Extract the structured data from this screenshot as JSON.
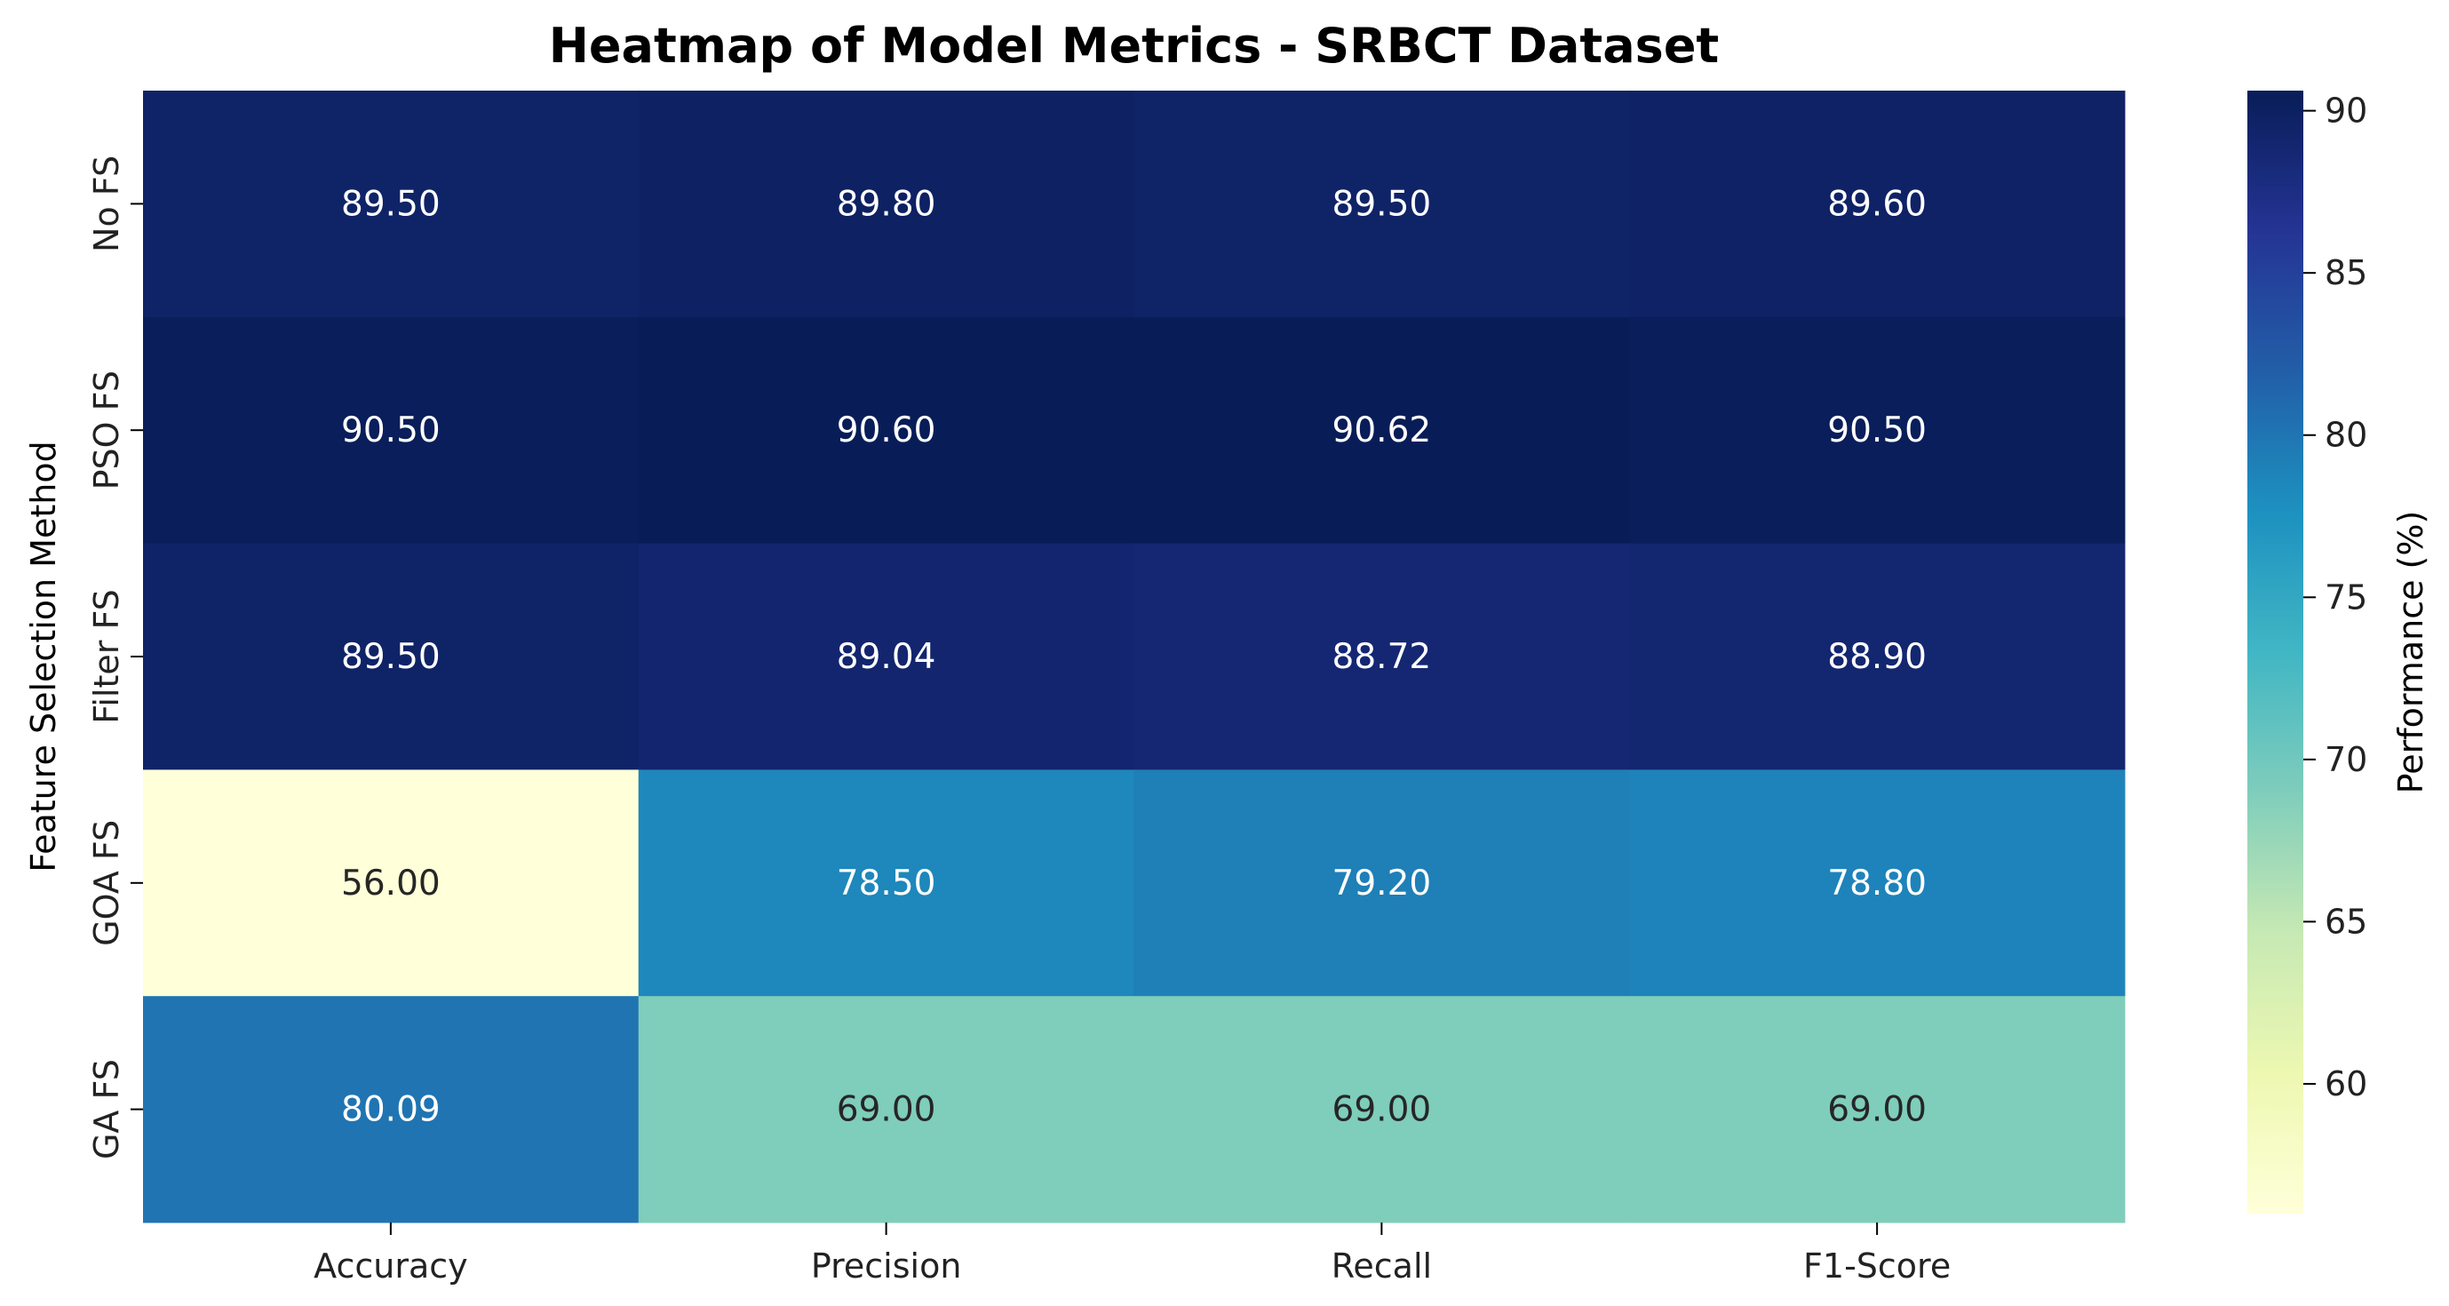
{
  "chart_data": {
    "type": "heatmap",
    "title": "Heatmap of Model Metrics - SRBCT Dataset",
    "xlabel": "",
    "ylabel": "Feature Selection Method",
    "columns": [
      "Accuracy",
      "Precision",
      "Recall",
      "F1-Score"
    ],
    "rows": [
      "No FS",
      "PSO FS",
      "Filter FS",
      "GOA FS",
      "GA FS"
    ],
    "values": [
      [
        89.5,
        89.8,
        89.5,
        89.6
      ],
      [
        90.5,
        90.6,
        90.62,
        90.5
      ],
      [
        89.5,
        89.04,
        88.72,
        88.9
      ],
      [
        56.0,
        78.5,
        79.2,
        78.8
      ],
      [
        80.09,
        69.0,
        69.0,
        69.0
      ]
    ],
    "value_format": "2 decimals",
    "colormap": "YlGnBu",
    "colorbar": {
      "label": "Performance (%)",
      "min": 56.0,
      "max": 90.62,
      "ticks": [
        60,
        65,
        70,
        75,
        80,
        85,
        90
      ]
    },
    "legend": "colorbar-right"
  }
}
